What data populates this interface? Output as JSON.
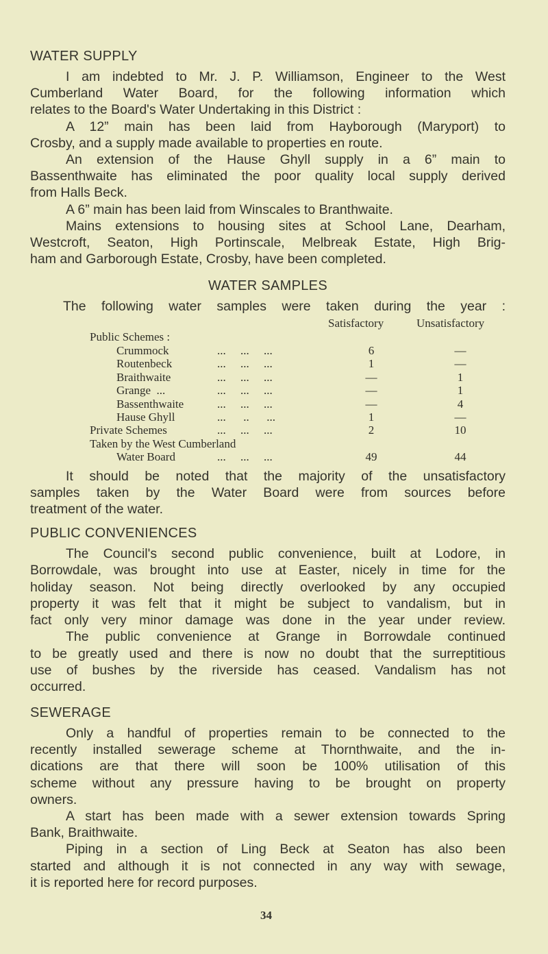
{
  "water_supply": {
    "heading": "WATER SUPPLY",
    "paragraphs": [
      [
        "I am indebted to Mr. J. P. Williamson, Engineer to the West",
        "Cumberland Water Board, for the following information which",
        "relates to the Board's Water Undertaking in this District :"
      ],
      [
        "A 12” main has been laid from Hayborough (Maryport) to",
        "Crosby, and a supply made available to properties en route."
      ],
      [
        "An extension of the Hause Ghyll supply in a 6” main to",
        "Bassenthwaite has eliminated the poor quality local supply derived",
        "from Halls Beck."
      ],
      [
        "A 6” main has been laid from Winscales to Branthwaite."
      ],
      [
        "Mains extensions to housing sites at School Lane, Dearham,",
        "Westcroft, Seaton, High Portinscale, Melbreak Estate, High Brig-",
        "ham and Garborough Estate, Crosby, have been completed."
      ]
    ]
  },
  "water_samples": {
    "heading": "WATER SAMPLES",
    "intro": "The following water samples were taken during the year :",
    "table": {
      "columns": [
        "Satisfactory",
        "Unsatisfactory"
      ],
      "group_label": "Public Schemes :",
      "rows": [
        {
          "label": "Crummock",
          "dots": "...     ...     ...",
          "satisfactory": "6",
          "unsatisfactory": "—",
          "indent": true
        },
        {
          "label": "Routenbeck",
          "dots": "...     ...     ...",
          "satisfactory": "1",
          "unsatisfactory": "—",
          "indent": true
        },
        {
          "label": "Braithwaite",
          "dots": "...     ...     ...",
          "satisfactory": "—",
          "unsatisfactory": "1",
          "indent": true
        },
        {
          "label": "Grange  ...",
          "dots": "...     ...     ...",
          "satisfactory": "—",
          "unsatisfactory": "1",
          "indent": true
        },
        {
          "label": "Bassenthwaite",
          "dots": "...     ...     ...",
          "satisfactory": "—",
          "unsatisfactory": "4",
          "indent": true
        },
        {
          "label": "Hause Ghyll",
          "dots": "...      ..      ...",
          "satisfactory": "1",
          "unsatisfactory": "—",
          "indent": true
        },
        {
          "label": "Private Schemes",
          "dots": "...     ...     ...",
          "satisfactory": "2",
          "unsatisfactory": "10",
          "indent": false
        }
      ],
      "board_label_1": "Taken by the West Cumberland",
      "board_label_2": "Water Board",
      "board_dots": "...     ...     ...",
      "board_satisfactory": "49",
      "board_unsatisfactory": "44"
    },
    "paragraphs": [
      [
        "It should be noted that the majority of the unsatisfactory",
        "samples taken by the Water Board were from sources before",
        "treatment of the water."
      ]
    ]
  },
  "public_conveniences": {
    "heading": "PUBLIC CONVENIENCES",
    "paragraphs": [
      [
        "The Council's second public convenience, built at Lodore, in",
        "Borrowdale, was brought into use at Easter, nicely in time for the",
        "holiday season.  Not being directly overlooked by any occupied",
        "property it was felt that it might be subject to vandalism, but in",
        "fact only very minor damage was done in the year under review."
      ],
      [
        "The public convenience at Grange in Borrowdale continued",
        "to be greatly used and there is now no doubt that the surreptitious",
        "use of bushes by the riverside has ceased.  Vandalism has not",
        "occurred."
      ]
    ]
  },
  "sewerage": {
    "heading": "SEWERAGE",
    "paragraphs": [
      [
        "Only a handful of properties remain to be connected to the",
        "recently installed sewerage scheme at Thornthwaite, and the in-",
        "dications are that there will soon be 100% utilisation of this",
        "scheme without any pressure having to be brought on property",
        "owners."
      ],
      [
        "A start has been made with a sewer extension towards Spring",
        "Bank, Braithwaite."
      ],
      [
        "Piping in a section of Ling Beck at Seaton has also been",
        "started and although it is not connected in any way with sewage,",
        "it is reported here for record purposes."
      ]
    ]
  },
  "page_number": "34"
}
